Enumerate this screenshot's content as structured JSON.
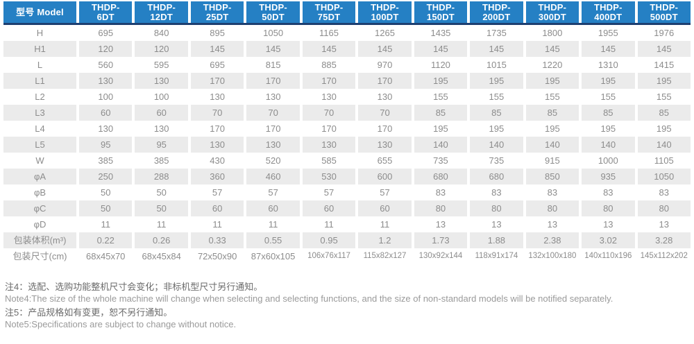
{
  "colors": {
    "header_bg": "#2580c4",
    "header_underline": "#1d3f70",
    "stripe_bg": "#ebebeb",
    "cell_text": "#8c8c8c",
    "header_text": "#ffffff"
  },
  "chart_data": {
    "type": "table",
    "title": "型号 Model specification table"
  },
  "table": {
    "header": [
      "型号 Model",
      "THDP-\n6DT",
      "THDP-\n12DT",
      "THDP-\n25DT",
      "THDP-\n50DT",
      "THDP-\n75DT",
      "THDP-\n100DT",
      "THDP-\n150DT",
      "THDP-\n200DT",
      "THDP-\n300DT",
      "THDP-\n400DT",
      "THDP-\n500DT"
    ],
    "rows": [
      {
        "label": "H",
        "values": [
          "695",
          "840",
          "895",
          "1050",
          "1165",
          "1265",
          "1435",
          "1735",
          "1800",
          "1955",
          "1976"
        ]
      },
      {
        "label": "H1",
        "values": [
          "120",
          "120",
          "145",
          "145",
          "145",
          "145",
          "145",
          "145",
          "145",
          "145",
          "145"
        ]
      },
      {
        "label": "L",
        "values": [
          "560",
          "595",
          "695",
          "815",
          "885",
          "970",
          "1120",
          "1015",
          "1220",
          "1310",
          "1415"
        ]
      },
      {
        "label": "L1",
        "values": [
          "130",
          "130",
          "170",
          "170",
          "170",
          "170",
          "195",
          "195",
          "195",
          "195",
          "195"
        ]
      },
      {
        "label": "L2",
        "values": [
          "100",
          "100",
          "130",
          "130",
          "130",
          "130",
          "155",
          "155",
          "155",
          "155",
          "155"
        ]
      },
      {
        "label": "L3",
        "values": [
          "60",
          "60",
          "70",
          "70",
          "70",
          "70",
          "85",
          "85",
          "85",
          "85",
          "85"
        ]
      },
      {
        "label": "L4",
        "values": [
          "130",
          "130",
          "170",
          "170",
          "170",
          "170",
          "195",
          "195",
          "195",
          "195",
          "195"
        ]
      },
      {
        "label": "L5",
        "values": [
          "95",
          "95",
          "130",
          "130",
          "130",
          "130",
          "140",
          "140",
          "140",
          "140",
          "140"
        ]
      },
      {
        "label": "W",
        "values": [
          "385",
          "385",
          "430",
          "520",
          "585",
          "655",
          "735",
          "735",
          "915",
          "1000",
          "1105"
        ]
      },
      {
        "label": "φA",
        "values": [
          "250",
          "288",
          "360",
          "460",
          "530",
          "600",
          "680",
          "680",
          "850",
          "935",
          "1050"
        ]
      },
      {
        "label": "φB",
        "values": [
          "50",
          "50",
          "57",
          "57",
          "57",
          "57",
          "83",
          "83",
          "83",
          "83",
          "83"
        ]
      },
      {
        "label": "φC",
        "values": [
          "50",
          "50",
          "60",
          "60",
          "60",
          "60",
          "80",
          "80",
          "80",
          "80",
          "80"
        ]
      },
      {
        "label": "φD",
        "values": [
          "11",
          "11",
          "11",
          "11",
          "11",
          "11",
          "13",
          "13",
          "13",
          "13",
          "13"
        ]
      },
      {
        "label": "包装体积(m³)",
        "values": [
          "0.22",
          "0.26",
          "0.33",
          "0.55",
          "0.95",
          "1.2",
          "1.73",
          "1.88",
          "2.38",
          "3.02",
          "3.28"
        ]
      },
      {
        "label": "包装尺寸(cm)",
        "values": [
          "68x45x70",
          "68x45x84",
          "72x50x90",
          "87x60x105",
          "106x76x117",
          "115x82x127",
          "130x92x144",
          "118x91x174",
          "132x100x180",
          "140x110x196",
          "145x112x202"
        ]
      }
    ]
  },
  "notes": [
    {
      "zh": "注4：选配、选购功能整机尺寸会变化；非标机型尺寸另行通知。",
      "en": "Note4:The size of the whole machine will change when selecting and selecting functions, and the size of non-standard models will be notified separately."
    },
    {
      "zh": "注5：产品规格如有变更，恕不另行通知。",
      "en": "Note5:Specifications are subject to change without notice."
    }
  ]
}
